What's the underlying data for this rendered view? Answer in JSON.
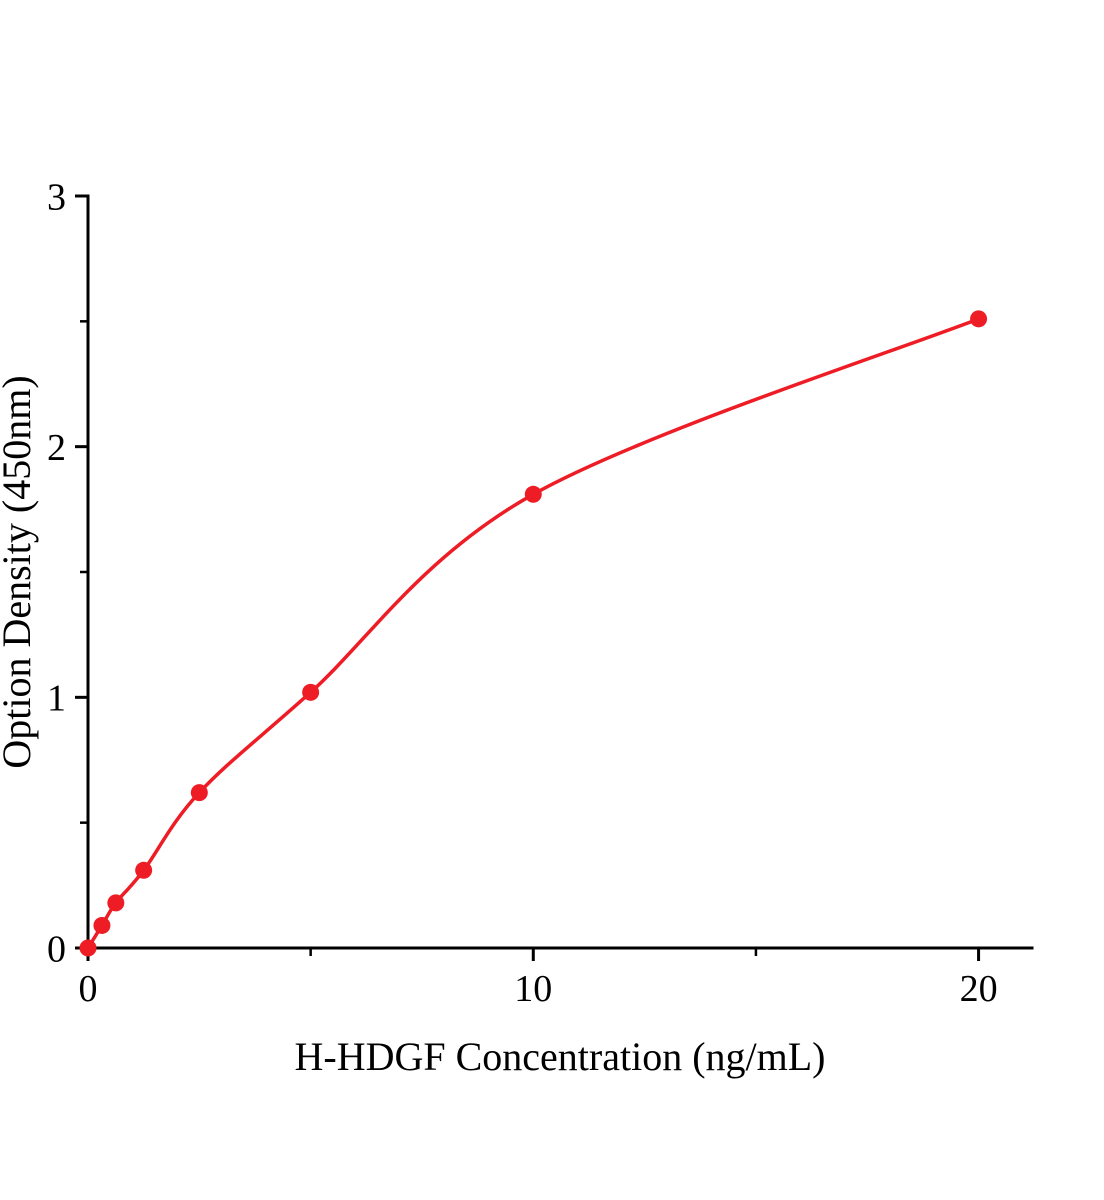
{
  "chart_data": {
    "type": "scatter",
    "title": "",
    "xlabel": "H-HDGF Concentration (ng/mL)",
    "ylabel": "Option Density (450nm)",
    "x": [
      0,
      0.313,
      0.625,
      1.25,
      2.5,
      5,
      10,
      20
    ],
    "y": [
      0,
      0.09,
      0.18,
      0.31,
      0.62,
      1.02,
      1.81,
      2.51
    ],
    "xlim": [
      0,
      21.2
    ],
    "ylim": [
      0,
      3
    ],
    "x_major_ticks": [
      0,
      10,
      20
    ],
    "x_minor_ticks": [
      5,
      15
    ],
    "y_major_ticks": [
      0,
      1,
      2,
      3
    ],
    "y_minor_ticks": [
      0.5,
      1.5,
      2.5
    ],
    "grid": false,
    "legend": false,
    "curve_fit": "smooth saturating curve through data points",
    "colors": {
      "series": "#ee1c25",
      "axis": "#000000",
      "background": "#ffffff"
    },
    "marker": {
      "shape": "circle",
      "radius_px": 8.5
    }
  }
}
